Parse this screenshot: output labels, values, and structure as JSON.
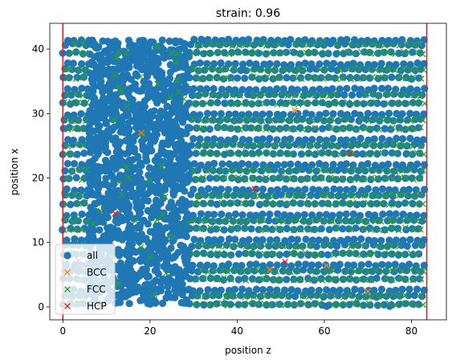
{
  "chart_data": {
    "type": "scatter",
    "title": "strain: 0.96",
    "xlabel": "position z",
    "ylabel": "position x",
    "xlim": [
      -3,
      88
    ],
    "ylim": [
      -2,
      44
    ],
    "xticks": [
      0,
      20,
      40,
      60,
      80
    ],
    "yticks": [
      0,
      10,
      20,
      30,
      40
    ],
    "xtick_labels": [
      "0",
      "20",
      "40",
      "60",
      "80"
    ],
    "ytick_labels": [
      "0",
      "10",
      "20",
      "30",
      "40"
    ],
    "grid": false,
    "legend": {
      "placement": "lower-left",
      "entries": [
        {
          "label": "all",
          "marker": "circle",
          "color": "#1f77b4"
        },
        {
          "label": "BCC",
          "marker": "x",
          "color": "#ff7f0e"
        },
        {
          "label": "FCC",
          "marker": "x",
          "color": "#2ca02c"
        },
        {
          "label": "HCP",
          "marker": "x",
          "color": "#d62728"
        }
      ]
    },
    "vertical_lines": [
      {
        "x": 0,
        "color": "#d62728"
      },
      {
        "x": 83.5,
        "color": "#d62728"
      }
    ],
    "series": [
      {
        "name": "all",
        "color": "#1f77b4",
        "generated": {
          "rows_y": [
            0.4,
            1.7,
            2.6,
            4.3,
            5.6,
            6.5,
            8.2,
            9.5,
            10.4,
            12.1,
            13.4,
            14.3,
            16.0,
            17.3,
            18.2,
            19.9,
            21.2,
            22.1,
            23.8,
            25.1,
            26.0,
            27.7,
            29.0,
            29.9,
            31.6,
            32.9,
            33.8,
            35.5,
            36.8,
            37.7,
            39.4,
            40.7,
            41.4
          ],
          "ordered_ranges": [
            [
              0,
              6
            ],
            [
              29,
              83
            ]
          ],
          "disordered_range": [
            6,
            29
          ],
          "spacing": 1.6,
          "disordered_count": 1400
        }
      },
      {
        "name": "FCC",
        "color": "#2ca02c",
        "generated": {
          "ordered_ranges": [
            [
              0.5,
              5.5
            ],
            [
              30,
              83
            ]
          ],
          "spacing": 1.6
        }
      },
      {
        "name": "BCC",
        "color": "#ff7f0e",
        "points": [
          [
            47.5,
            5.8
          ],
          [
            70,
            2.4
          ],
          [
            18,
            27
          ],
          [
            60.5,
            6.4
          ],
          [
            53.2,
            30.5
          ]
        ]
      },
      {
        "name": "HCP",
        "color": "#d62728",
        "points": [
          [
            3.5,
            7.2
          ],
          [
            12,
            14.5
          ],
          [
            44,
            18.3
          ],
          [
            51,
            7.0
          ],
          [
            66,
            23.8
          ]
        ]
      }
    ]
  }
}
